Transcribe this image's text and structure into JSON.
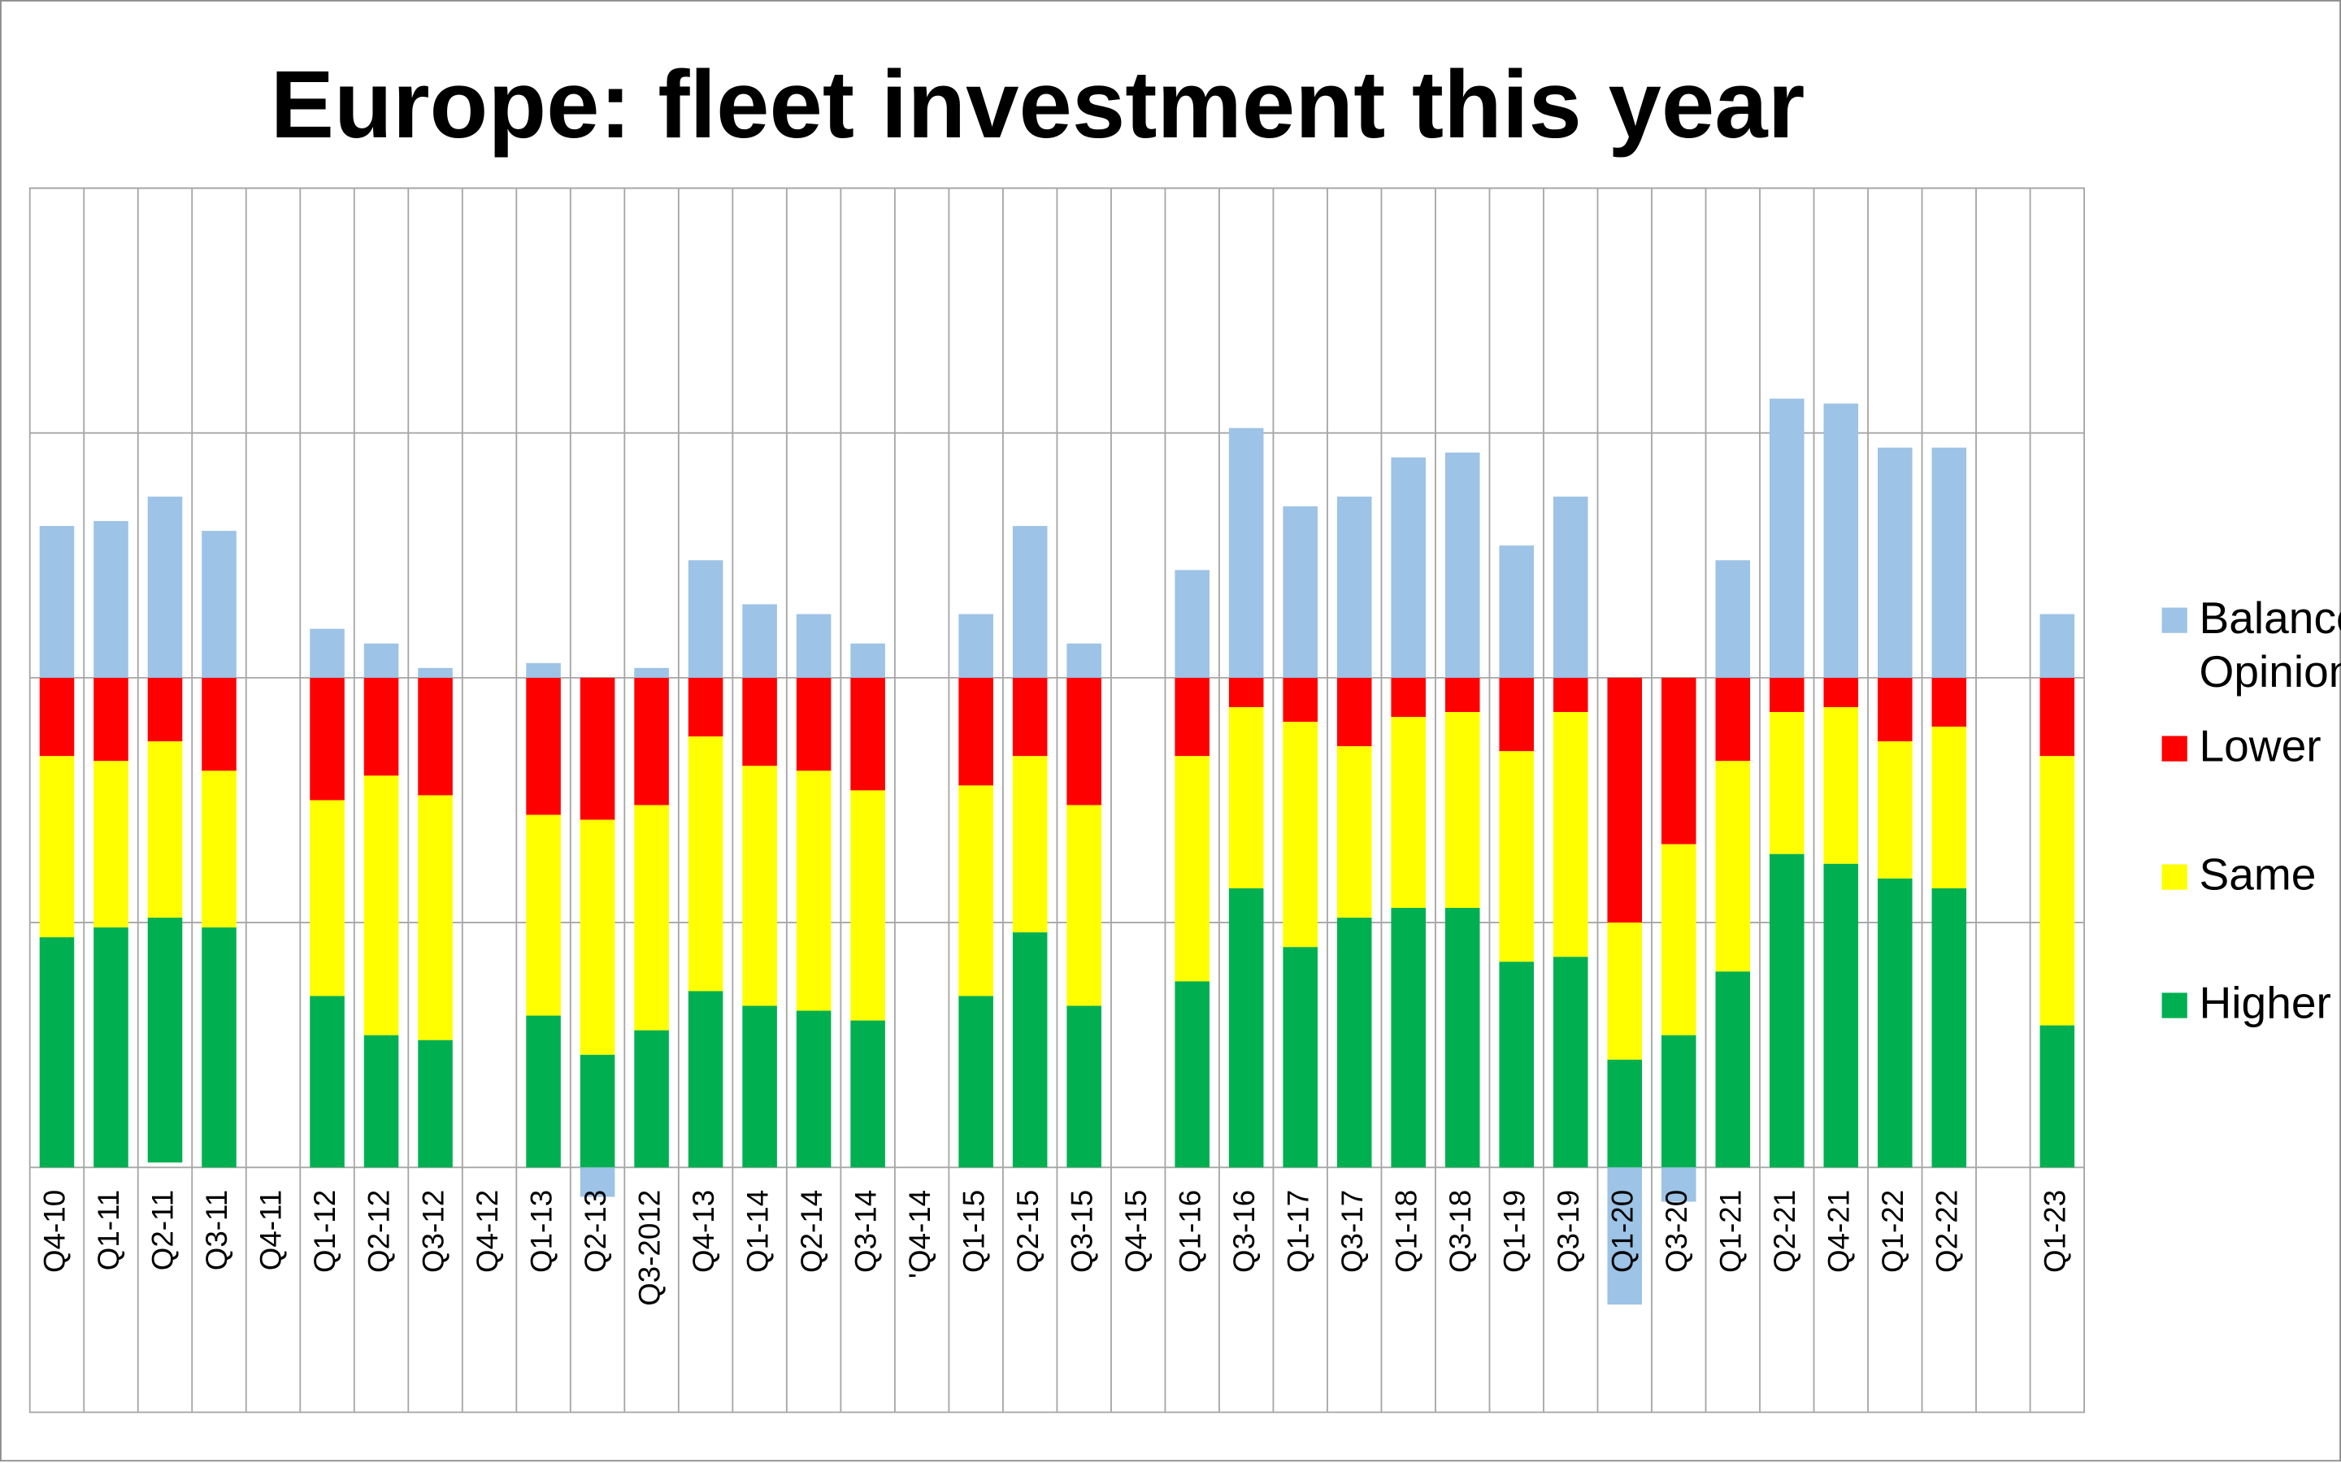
{
  "chart_data": {
    "type": "bar",
    "stacked": true,
    "title": "Europe: fleet investment this year",
    "categories": [
      "Q4-10",
      "Q1-11",
      "Q2-11",
      "Q3-11",
      "Q4-11",
      "Q1-12",
      "Q2-12",
      "Q3-12",
      "Q4-12",
      "Q1-13",
      "Q2-13",
      "Q3-2012",
      "Q4-13",
      "Q1-14",
      "Q2-14",
      "Q3-14",
      "'Q4-14",
      "Q1-15",
      "Q2-15",
      "Q3-15",
      "Q4-15",
      "Q1-16",
      "Q3-16",
      "Q1-17",
      "Q3-17",
      "Q1-18",
      "Q3-18",
      "Q1-19",
      "Q3-19",
      "Q1-20",
      "Q3-20",
      "Q1-21",
      "Q2-21",
      "Q4-21",
      "Q1-22",
      "Q2-22",
      null,
      "Q1-23"
    ],
    "series": [
      {
        "name": "Balance Opinion",
        "color": "#9dc3e6",
        "values": [
          31,
          32,
          37,
          30,
          null,
          10,
          7,
          2,
          null,
          3,
          -6,
          2,
          24,
          15,
          13,
          7,
          null,
          13,
          31,
          7,
          null,
          22,
          51,
          35,
          37,
          45,
          46,
          27,
          37,
          -28,
          -7,
          24,
          57,
          56,
          47,
          47,
          null,
          13
        ]
      },
      {
        "name": "Lower",
        "color": "#ff0000",
        "values": [
          -16,
          -17,
          -13,
          -19,
          null,
          -25,
          -20,
          -24,
          null,
          -28,
          -29,
          -26,
          -12,
          -18,
          -19,
          -23,
          null,
          -22,
          -16,
          -26,
          null,
          -16,
          -6,
          -9,
          -14,
          -8,
          -7,
          -15,
          -7,
          -50,
          -34,
          -17,
          -7,
          -6,
          -13,
          -10,
          null,
          -16
        ]
      },
      {
        "name": "Same",
        "color": "#ffff00",
        "values": [
          -37,
          -34,
          -36,
          -32,
          null,
          -40,
          -53,
          -50,
          null,
          -41,
          -48,
          -46,
          -52,
          -49,
          -49,
          -47,
          null,
          -43,
          -36,
          -41,
          null,
          -46,
          -37,
          -46,
          -35,
          -39,
          -40,
          -43,
          -50,
          -28,
          -39,
          -43,
          -29,
          -32,
          -28,
          -33,
          null,
          -55
        ]
      },
      {
        "name": "Higher",
        "color": "#00b050",
        "values": [
          -47,
          -49,
          -50,
          -49,
          null,
          -35,
          -27,
          -26,
          null,
          -31,
          -23,
          -28,
          -36,
          -33,
          -32,
          -30,
          null,
          -35,
          -48,
          -33,
          null,
          -38,
          -57,
          -45,
          -51,
          -53,
          -53,
          -42,
          -43,
          -22,
          -27,
          -40,
          -64,
          -62,
          -59,
          -57,
          null,
          -29
        ]
      }
    ],
    "ylim": [
      -150,
      100
    ],
    "yticks": [
      -100,
      -50,
      0,
      50,
      100
    ],
    "grid": true,
    "legend": "right"
  }
}
